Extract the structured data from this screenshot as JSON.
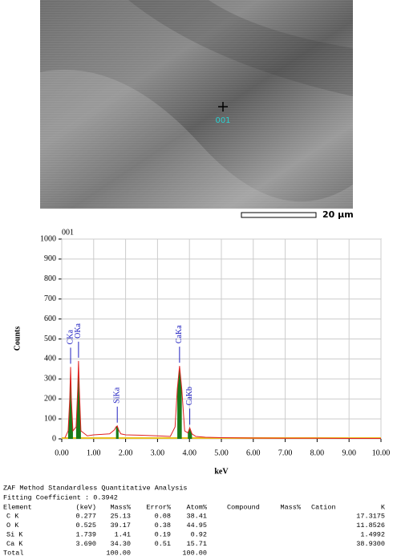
{
  "sem": {
    "point_label": "001",
    "scale_label": "20 μm"
  },
  "chart_data": {
    "type": "line",
    "title": "001",
    "ylabel": "Counts",
    "xlabel": "keV",
    "xlim": [
      0,
      10
    ],
    "ylim": [
      0,
      1000
    ],
    "xticks": [
      {
        "value": 0,
        "label": "0.00"
      },
      {
        "value": 1,
        "label": "1.00"
      },
      {
        "value": 2,
        "label": "2.00"
      },
      {
        "value": 3,
        "label": "3.00"
      },
      {
        "value": 4,
        "label": "4.00"
      },
      {
        "value": 5,
        "label": "5.00"
      },
      {
        "value": 6,
        "label": "6.00"
      },
      {
        "value": 7,
        "label": "7.00"
      },
      {
        "value": 8,
        "label": "8.00"
      },
      {
        "value": 9,
        "label": "9.00"
      },
      {
        "value": 10,
        "label": "10.00"
      }
    ],
    "yticks": [
      0,
      100,
      200,
      300,
      400,
      500,
      600,
      700,
      800,
      900,
      1000
    ],
    "grid": true,
    "color": "#e02020",
    "peak_color": "#1a7a1a",
    "label_color": "#2020c0",
    "x": [
      0.1,
      0.2,
      0.25,
      0.277,
      0.3,
      0.35,
      0.45,
      0.5,
      0.525,
      0.55,
      0.6,
      0.8,
      1.0,
      1.2,
      1.5,
      1.65,
      1.7,
      1.739,
      1.78,
      1.85,
      2.0,
      2.5,
      3.0,
      3.4,
      3.55,
      3.62,
      3.69,
      3.76,
      3.85,
      3.95,
      4.01,
      4.08,
      4.2,
      4.5,
      5.0,
      6.0,
      7.0,
      8.0,
      9.0,
      10.0
    ],
    "values": [
      5,
      40,
      200,
      360,
      200,
      40,
      60,
      250,
      390,
      250,
      40,
      15,
      20,
      22,
      25,
      45,
      60,
      65,
      45,
      25,
      20,
      18,
      15,
      12,
      60,
      250,
      365,
      250,
      40,
      30,
      55,
      25,
      12,
      8,
      6,
      4,
      3,
      3,
      2,
      2
    ],
    "peak_labels": [
      {
        "label": "CKa",
        "x": 0.277
      },
      {
        "label": "OKa",
        "x": 0.525
      },
      {
        "label": "SiKa",
        "x": 1.739
      },
      {
        "label": "CaKa",
        "x": 3.69
      },
      {
        "label": "CaKb",
        "x": 4.01
      }
    ]
  },
  "table": {
    "title": "ZAF Method Standardless Quantitative Analysis",
    "fitting": "Fitting Coefficient : 0.3942",
    "header": [
      "Element",
      "(keV)",
      "Mass%",
      "Error%",
      "Atom%",
      "Compound",
      "Mass%",
      "Cation",
      "K"
    ],
    "rows": [
      {
        "element": "C K",
        "kev": "0.277",
        "mass": "25.13",
        "error": "0.08",
        "atom": "38.41",
        "k": "17.3175"
      },
      {
        "element": "O K",
        "kev": "0.525",
        "mass": "39.17",
        "error": "0.38",
        "atom": "44.95",
        "k": "11.8526"
      },
      {
        "element": "Si K",
        "kev": "1.739",
        "mass": "1.41",
        "error": "0.19",
        "atom": "0.92",
        "k": "1.4992"
      },
      {
        "element": "Ca K",
        "kev": "3.690",
        "mass": "34.30",
        "error": "0.51",
        "atom": "15.71",
        "k": "38.9300"
      },
      {
        "element": "Total",
        "mass": "100.00",
        "atom": "100.00"
      }
    ]
  }
}
